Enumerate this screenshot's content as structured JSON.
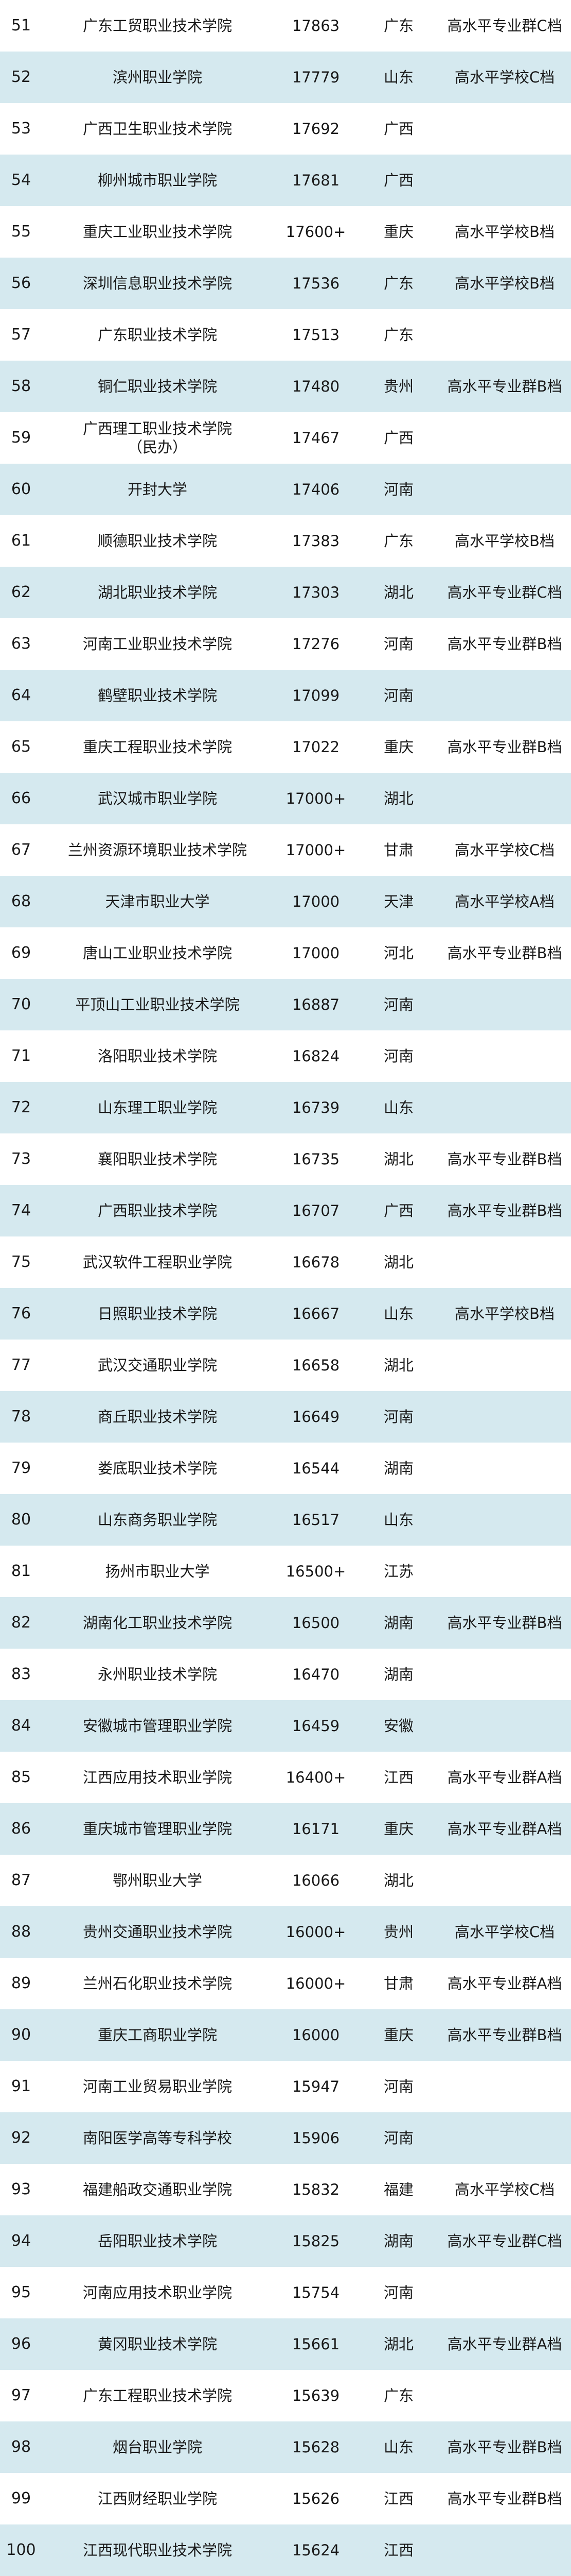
{
  "colors": {
    "row_alt": "#d5e9ef",
    "row": "#ffffff"
  },
  "rows": [
    {
      "rank": "51",
      "name": "广东工贸职业技术学院",
      "score": "17863",
      "province": "广东",
      "level": "高水平专业群C档"
    },
    {
      "rank": "52",
      "name": "滨州职业学院",
      "score": "17779",
      "province": "山东",
      "level": "高水平学校C档"
    },
    {
      "rank": "53",
      "name": "广西卫生职业技术学院",
      "score": "17692",
      "province": "广西",
      "level": ""
    },
    {
      "rank": "54",
      "name": "柳州城市职业学院",
      "score": "17681",
      "province": "广西",
      "level": ""
    },
    {
      "rank": "55",
      "name": "重庆工业职业技术学院",
      "score": "17600+",
      "province": "重庆",
      "level": "高水平学校B档"
    },
    {
      "rank": "56",
      "name": "深圳信息职业技术学院",
      "score": "17536",
      "province": "广东",
      "level": "高水平学校B档"
    },
    {
      "rank": "57",
      "name": "广东职业技术学院",
      "score": "17513",
      "province": "广东",
      "level": ""
    },
    {
      "rank": "58",
      "name": "铜仁职业技术学院",
      "score": "17480",
      "province": "贵州",
      "level": "高水平专业群B档"
    },
    {
      "rank": "59",
      "name": "广西理工职业技术学院\n（民办）",
      "score": "17467",
      "province": "广西",
      "level": ""
    },
    {
      "rank": "60",
      "name": "开封大学",
      "score": "17406",
      "province": "河南",
      "level": ""
    },
    {
      "rank": "61",
      "name": "顺德职业技术学院",
      "score": "17383",
      "province": "广东",
      "level": "高水平学校B档"
    },
    {
      "rank": "62",
      "name": "湖北职业技术学院",
      "score": "17303",
      "province": "湖北",
      "level": "高水平专业群C档"
    },
    {
      "rank": "63",
      "name": "河南工业职业技术学院",
      "score": "17276",
      "province": "河南",
      "level": "高水平专业群B档"
    },
    {
      "rank": "64",
      "name": "鹤壁职业技术学院",
      "score": "17099",
      "province": "河南",
      "level": ""
    },
    {
      "rank": "65",
      "name": "重庆工程职业技术学院",
      "score": "17022",
      "province": "重庆",
      "level": "高水平专业群B档"
    },
    {
      "rank": "66",
      "name": "武汉城市职业学院",
      "score": "17000+",
      "province": "湖北",
      "level": ""
    },
    {
      "rank": "67",
      "name": "兰州资源环境职业技术学院",
      "score": "17000+",
      "province": "甘肃",
      "level": "高水平学校C档"
    },
    {
      "rank": "68",
      "name": "天津市职业大学",
      "score": "17000",
      "province": "天津",
      "level": "高水平学校A档"
    },
    {
      "rank": "69",
      "name": "唐山工业职业技术学院",
      "score": "17000",
      "province": "河北",
      "level": "高水平专业群B档"
    },
    {
      "rank": "70",
      "name": "平顶山工业职业技术学院",
      "score": "16887",
      "province": "河南",
      "level": ""
    },
    {
      "rank": "71",
      "name": "洛阳职业技术学院",
      "score": "16824",
      "province": "河南",
      "level": ""
    },
    {
      "rank": "72",
      "name": "山东理工职业学院",
      "score": "16739",
      "province": "山东",
      "level": ""
    },
    {
      "rank": "73",
      "name": "襄阳职业技术学院",
      "score": "16735",
      "province": "湖北",
      "level": "高水平专业群B档"
    },
    {
      "rank": "74",
      "name": "广西职业技术学院",
      "score": "16707",
      "province": "广西",
      "level": "高水平专业群B档"
    },
    {
      "rank": "75",
      "name": "武汉软件工程职业学院",
      "score": "16678",
      "province": "湖北",
      "level": ""
    },
    {
      "rank": "76",
      "name": "日照职业技术学院",
      "score": "16667",
      "province": "山东",
      "level": "高水平学校B档"
    },
    {
      "rank": "77",
      "name": "武汉交通职业学院",
      "score": "16658",
      "province": "湖北",
      "level": ""
    },
    {
      "rank": "78",
      "name": "商丘职业技术学院",
      "score": "16649",
      "province": "河南",
      "level": ""
    },
    {
      "rank": "79",
      "name": "娄底职业技术学院",
      "score": "16544",
      "province": "湖南",
      "level": ""
    },
    {
      "rank": "80",
      "name": "山东商务职业学院",
      "score": "16517",
      "province": "山东",
      "level": ""
    },
    {
      "rank": "81",
      "name": "扬州市职业大学",
      "score": "16500+",
      "province": "江苏",
      "level": ""
    },
    {
      "rank": "82",
      "name": "湖南化工职业技术学院",
      "score": "16500",
      "province": "湖南",
      "level": "高水平专业群B档"
    },
    {
      "rank": "83",
      "name": "永州职业技术学院",
      "score": "16470",
      "province": "湖南",
      "level": ""
    },
    {
      "rank": "84",
      "name": "安徽城市管理职业学院",
      "score": "16459",
      "province": "安徽",
      "level": ""
    },
    {
      "rank": "85",
      "name": "江西应用技术职业学院",
      "score": "16400+",
      "province": "江西",
      "level": "高水平专业群A档"
    },
    {
      "rank": "86",
      "name": "重庆城市管理职业学院",
      "score": "16171",
      "province": "重庆",
      "level": "高水平专业群A档"
    },
    {
      "rank": "87",
      "name": "鄂州职业大学",
      "score": "16066",
      "province": "湖北",
      "level": ""
    },
    {
      "rank": "88",
      "name": "贵州交通职业技术学院",
      "score": "16000+",
      "province": "贵州",
      "level": "高水平学校C档"
    },
    {
      "rank": "89",
      "name": "兰州石化职业技术学院",
      "score": "16000+",
      "province": "甘肃",
      "level": "高水平专业群A档"
    },
    {
      "rank": "90",
      "name": "重庆工商职业学院",
      "score": "16000",
      "province": "重庆",
      "level": "高水平专业群B档"
    },
    {
      "rank": "91",
      "name": "河南工业贸易职业学院",
      "score": "15947",
      "province": "河南",
      "level": ""
    },
    {
      "rank": "92",
      "name": "南阳医学高等专科学校",
      "score": "15906",
      "province": "河南",
      "level": ""
    },
    {
      "rank": "93",
      "name": "福建船政交通职业学院",
      "score": "15832",
      "province": "福建",
      "level": "高水平学校C档"
    },
    {
      "rank": "94",
      "name": "岳阳职业技术学院",
      "score": "15825",
      "province": "湖南",
      "level": "高水平专业群C档"
    },
    {
      "rank": "95",
      "name": "河南应用技术职业学院",
      "score": "15754",
      "province": "河南",
      "level": ""
    },
    {
      "rank": "96",
      "name": "黄冈职业技术学院",
      "score": "15661",
      "province": "湖北",
      "level": "高水平专业群A档"
    },
    {
      "rank": "97",
      "name": "广东工程职业技术学院",
      "score": "15639",
      "province": "广东",
      "level": ""
    },
    {
      "rank": "98",
      "name": "烟台职业学院",
      "score": "15628",
      "province": "山东",
      "level": "高水平专业群B档"
    },
    {
      "rank": "99",
      "name": "江西财经职业学院",
      "score": "15626",
      "province": "江西",
      "level": "高水平专业群B档"
    },
    {
      "rank": "100",
      "name": "江西现代职业技术学院",
      "score": "15624",
      "province": "江西",
      "level": ""
    }
  ]
}
